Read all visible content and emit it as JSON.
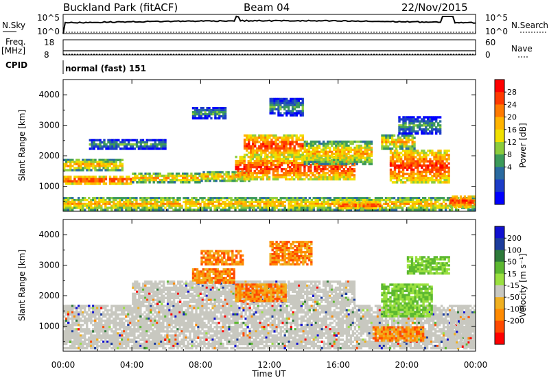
{
  "header": {
    "station": "Buckland Park (fitACF)",
    "beam": "Beam 04",
    "date": "22/Nov/2015"
  },
  "strip_panels": {
    "nsky_label": "N.Sky",
    "nsky_ticks": [
      "10^5",
      "10^0"
    ],
    "nsearch_label": "N.Search",
    "nsearch_ticks": [
      "10^5",
      "10^0"
    ],
    "freq_label": "Freq.",
    "freq_unit": "[MHz]",
    "freq_ticks": [
      "18",
      "8"
    ],
    "nave_label": "Nave",
    "nave_ticks": [
      "60",
      "0"
    ],
    "cpid_label": "CPID",
    "cpid_value": "normal (fast) 151"
  },
  "chart_data": [
    {
      "type": "heatmap",
      "panel": "power",
      "ylabel": "Slant Range [km]",
      "xlabel": "",
      "ylim": [
        180,
        4500
      ],
      "yticks": [
        1000,
        2000,
        3000,
        4000
      ],
      "xlim_hours": [
        0,
        24
      ],
      "colorbar": {
        "label": "Power [dB]",
        "ticks": [
          "28",
          "24",
          "20",
          "16",
          "12",
          "8",
          "4"
        ],
        "colors": [
          "#ff0000",
          "#ff3a00",
          "#ff7a00",
          "#ffb400",
          "#f0e000",
          "#8ccc3c",
          "#3c9a5a",
          "#2a6aa0",
          "#1c3cc8",
          "#0000ff"
        ]
      },
      "bands": [
        {
          "x": [
            0.0,
            4.0
          ],
          "y": [
            1050,
            1350
          ],
          "level": "high"
        },
        {
          "x": [
            4.0,
            8.0
          ],
          "y": [
            1100,
            1450
          ],
          "level": "mid"
        },
        {
          "x": [
            8.0,
            11.0
          ],
          "y": [
            1150,
            1500
          ],
          "level": "mid"
        },
        {
          "x": [
            10.0,
            17.0
          ],
          "y": [
            1200,
            2000
          ],
          "level": "high"
        },
        {
          "x": [
            10.5,
            14.0
          ],
          "y": [
            2000,
            2700
          ],
          "level": "high"
        },
        {
          "x": [
            14.0,
            18.0
          ],
          "y": [
            1700,
            2500
          ],
          "level": "mid"
        },
        {
          "x": [
            1.5,
            6.0
          ],
          "y": [
            2200,
            2550
          ],
          "level": "low"
        },
        {
          "x": [
            7.5,
            9.5
          ],
          "y": [
            3200,
            3600
          ],
          "level": "low"
        },
        {
          "x": [
            12.0,
            14.0
          ],
          "y": [
            3300,
            3900
          ],
          "level": "low"
        },
        {
          "x": [
            19.0,
            22.5
          ],
          "y": [
            1100,
            2200
          ],
          "level": "high"
        },
        {
          "x": [
            18.5,
            20.5
          ],
          "y": [
            2200,
            2700
          ],
          "level": "mid"
        },
        {
          "x": [
            19.5,
            22.0
          ],
          "y": [
            2700,
            3300
          ],
          "level": "low"
        },
        {
          "x": [
            0.0,
            3.5
          ],
          "y": [
            1500,
            1900
          ],
          "level": "mid"
        },
        {
          "x": [
            0.0,
            24.0
          ],
          "y": [
            200,
            650
          ],
          "level": "mid"
        },
        {
          "x": [
            22.5,
            24.0
          ],
          "y": [
            300,
            700
          ],
          "level": "high"
        },
        {
          "x": [
            16.0,
            18.5
          ],
          "y": [
            250,
            500
          ],
          "level": "high"
        }
      ]
    },
    {
      "type": "heatmap",
      "panel": "velocity",
      "ylabel": "Slant Range [km]",
      "xlabel": "Time UT",
      "ylim": [
        180,
        4500
      ],
      "yticks": [
        1000,
        2000,
        3000,
        4000
      ],
      "xticks": [
        "00:00",
        "04:00",
        "08:00",
        "12:00",
        "16:00",
        "20:00",
        "00:00"
      ],
      "xlim_hours": [
        0,
        24
      ],
      "colorbar": {
        "label": "Velocity [m s⁻¹]",
        "ticks": [
          "200",
          "100",
          "50",
          "15",
          "-15",
          "-50",
          "-100",
          "-200"
        ],
        "colors": [
          "#1010d0",
          "#1c3c9c",
          "#2e7a3a",
          "#5cb830",
          "#9ae040",
          "#c8c8c0",
          "#f0b020",
          "#ff8a00",
          "#ff4a00",
          "#ff0000"
        ]
      },
      "bands": [
        {
          "x": [
            0.0,
            24.0
          ],
          "y": [
            250,
            1700
          ],
          "level": "ground"
        },
        {
          "x": [
            4.0,
            17.0
          ],
          "y": [
            1700,
            2500
          ],
          "level": "ground"
        },
        {
          "x": [
            7.5,
            10.0
          ],
          "y": [
            2400,
            2900
          ],
          "level": "neg"
        },
        {
          "x": [
            8.0,
            10.5
          ],
          "y": [
            3000,
            3500
          ],
          "level": "neg"
        },
        {
          "x": [
            12.0,
            14.5
          ],
          "y": [
            3000,
            3800
          ],
          "level": "neg"
        },
        {
          "x": [
            10.0,
            13.0
          ],
          "y": [
            1800,
            2400
          ],
          "level": "neg"
        },
        {
          "x": [
            18.5,
            21.5
          ],
          "y": [
            1300,
            2400
          ],
          "level": "pos"
        },
        {
          "x": [
            18.0,
            21.0
          ],
          "y": [
            500,
            1000
          ],
          "level": "neg"
        },
        {
          "x": [
            20.0,
            22.5
          ],
          "y": [
            2700,
            3300
          ],
          "level": "pos"
        },
        {
          "x": [
            22.5,
            24.0
          ],
          "y": [
            300,
            1400
          ],
          "level": "ground"
        }
      ]
    }
  ]
}
